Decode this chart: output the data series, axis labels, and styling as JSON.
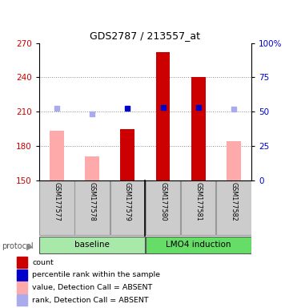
{
  "title": "GDS2787 / 213557_at",
  "samples": [
    "GSM177577",
    "GSM177578",
    "GSM177579",
    "GSM177580",
    "GSM177581",
    "GSM177582"
  ],
  "ylim_left": [
    150,
    270
  ],
  "ylim_right": [
    0,
    100
  ],
  "yticks_left": [
    150,
    180,
    210,
    240,
    270
  ],
  "yticks_right": [
    0,
    25,
    50,
    75,
    100
  ],
  "yticklabels_right": [
    "0",
    "25",
    "50",
    "75",
    "100%"
  ],
  "bar_values_red": [
    null,
    null,
    195,
    262,
    240,
    null
  ],
  "bar_values_pink": [
    193,
    171,
    null,
    null,
    null,
    184
  ],
  "dot_blue_dark": [
    null,
    null,
    213,
    214,
    214,
    null
  ],
  "dot_blue_light": [
    213,
    208,
    null,
    null,
    null,
    212
  ],
  "bar_width": 0.4,
  "left_ylabel_color": "#cc0000",
  "right_ylabel_color": "#0000cc",
  "legend_items": [
    {
      "color": "#cc0000",
      "label": "count"
    },
    {
      "color": "#0000cc",
      "label": "percentile rank within the sample"
    },
    {
      "color": "#ffaaaa",
      "label": "value, Detection Call = ABSENT"
    },
    {
      "color": "#aaaaee",
      "label": "rank, Detection Call = ABSENT"
    }
  ],
  "protocol_label": "protocol",
  "group_label_1": "baseline",
  "group_label_2": "LMO4 induction",
  "grid_color": "#888888",
  "background_color": "#ffffff",
  "green_light": "#a8e8a8",
  "green_dark": "#66dd66",
  "sample_box_color": "#cccccc",
  "sample_box_edge": "#999999"
}
